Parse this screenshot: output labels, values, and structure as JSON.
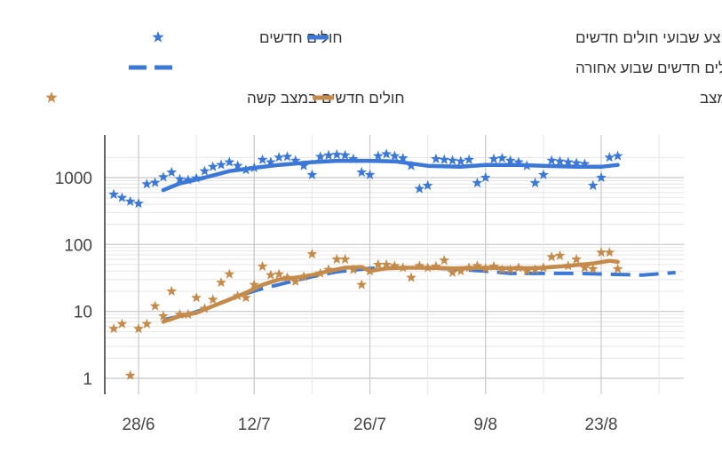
{
  "chart_data": {
    "type": "scatter",
    "title": "",
    "xlabel": "",
    "ylabel": "",
    "y_scale": "log",
    "ylim": [
      0.75,
      2500
    ],
    "xlim": [
      "2020-06-24",
      "2020-09-01"
    ],
    "x_ticks": [
      {
        "date": "2020-06-28",
        "label": "28/6"
      },
      {
        "date": "2020-07-12",
        "label": "12/7"
      },
      {
        "date": "2020-07-26",
        "label": "26/7"
      },
      {
        "date": "2020-08-09",
        "label": "9/8"
      },
      {
        "date": "2020-08-23",
        "label": "23/8"
      }
    ],
    "y_ticks": [
      {
        "value": 1,
        "label": "1"
      },
      {
        "value": 10,
        "label": "10"
      },
      {
        "value": 100,
        "label": "100"
      },
      {
        "value": 1000,
        "label": "1000"
      }
    ],
    "grid": true,
    "legend_position": "top",
    "legend": [
      {
        "label": "חולים חדשים",
        "marker": "star",
        "color": "#3c78d8"
      },
      {
        "label": "ממוצע שבועי חולים חדשים",
        "marker": "line",
        "color": "#3c78d8"
      },
      {
        "label": "שניים וחצי אחוזים מחולים חדשים שבוע אחורה",
        "marker": "dash",
        "color": "#3c78d8"
      },
      {
        "label": "חולים חדשים במצב קשה",
        "marker": "star",
        "color": "#c58b4b"
      },
      {
        "label": "ממוצע שבועי חולים חדשים במצב",
        "marker": "line",
        "color": "#c58b4b"
      }
    ],
    "series": [
      {
        "name": "חולים חדשים",
        "kind": "scatter",
        "color": "#3c78d8",
        "points": [
          [
            "2020-06-25",
            560
          ],
          [
            "2020-06-26",
            500
          ],
          [
            "2020-06-27",
            440
          ],
          [
            "2020-06-28",
            410
          ],
          [
            "2020-06-29",
            800
          ],
          [
            "2020-06-30",
            840
          ],
          [
            "2020-07-01",
            1020
          ],
          [
            "2020-07-02",
            1200
          ],
          [
            "2020-07-03",
            950
          ],
          [
            "2020-07-04",
            920
          ],
          [
            "2020-07-05",
            980
          ],
          [
            "2020-07-06",
            1250
          ],
          [
            "2020-07-07",
            1450
          ],
          [
            "2020-07-08",
            1550
          ],
          [
            "2020-07-09",
            1700
          ],
          [
            "2020-07-10",
            1500
          ],
          [
            "2020-07-11",
            1300
          ],
          [
            "2020-07-12",
            1400
          ],
          [
            "2020-07-13",
            1850
          ],
          [
            "2020-07-14",
            1700
          ],
          [
            "2020-07-15",
            2000
          ],
          [
            "2020-07-16",
            2050
          ],
          [
            "2020-07-17",
            1800
          ],
          [
            "2020-07-18",
            1500
          ],
          [
            "2020-07-19",
            1100
          ],
          [
            "2020-07-20",
            2050
          ],
          [
            "2020-07-21",
            2150
          ],
          [
            "2020-07-22",
            2200
          ],
          [
            "2020-07-23",
            2150
          ],
          [
            "2020-07-24",
            1900
          ],
          [
            "2020-07-25",
            1200
          ],
          [
            "2020-07-26",
            1100
          ],
          [
            "2020-07-27",
            2100
          ],
          [
            "2020-07-28",
            2250
          ],
          [
            "2020-07-29",
            2100
          ],
          [
            "2020-07-30",
            1950
          ],
          [
            "2020-07-31",
            1500
          ],
          [
            "2020-08-01",
            680
          ],
          [
            "2020-08-02",
            760
          ],
          [
            "2020-08-03",
            1900
          ],
          [
            "2020-08-04",
            1850
          ],
          [
            "2020-08-05",
            1800
          ],
          [
            "2020-08-06",
            1750
          ],
          [
            "2020-08-07",
            1850
          ],
          [
            "2020-08-08",
            830
          ],
          [
            "2020-08-09",
            1000
          ],
          [
            "2020-08-10",
            1900
          ],
          [
            "2020-08-11",
            1950
          ],
          [
            "2020-08-12",
            1800
          ],
          [
            "2020-08-13",
            1700
          ],
          [
            "2020-08-14",
            1500
          ],
          [
            "2020-08-15",
            830
          ],
          [
            "2020-08-16",
            1100
          ],
          [
            "2020-08-17",
            1800
          ],
          [
            "2020-08-18",
            1750
          ],
          [
            "2020-08-19",
            1700
          ],
          [
            "2020-08-20",
            1650
          ],
          [
            "2020-08-21",
            1600
          ],
          [
            "2020-08-22",
            760
          ],
          [
            "2020-08-23",
            1000
          ],
          [
            "2020-08-24",
            2000
          ],
          [
            "2020-08-25",
            2100
          ]
        ]
      },
      {
        "name": "ממוצע שבועי חולים חדשים",
        "kind": "line",
        "color": "#3c78d8",
        "points": [
          [
            "2020-07-01",
            650
          ],
          [
            "2020-07-03",
            820
          ],
          [
            "2020-07-06",
            1000
          ],
          [
            "2020-07-09",
            1250
          ],
          [
            "2020-07-12",
            1400
          ],
          [
            "2020-07-15",
            1550
          ],
          [
            "2020-07-19",
            1700
          ],
          [
            "2020-07-22",
            1780
          ],
          [
            "2020-07-26",
            1780
          ],
          [
            "2020-07-29",
            1750
          ],
          [
            "2020-08-02",
            1500
          ],
          [
            "2020-08-06",
            1450
          ],
          [
            "2020-08-09",
            1550
          ],
          [
            "2020-08-13",
            1550
          ],
          [
            "2020-08-16",
            1500
          ],
          [
            "2020-08-20",
            1450
          ],
          [
            "2020-08-23",
            1450
          ],
          [
            "2020-08-25",
            1550
          ]
        ]
      },
      {
        "name": "שניים וחצי אחוזים מחולים חדשים שבוע אחורה",
        "kind": "dashed",
        "color": "#3c78d8",
        "points": [
          [
            "2020-07-01",
            7.5
          ],
          [
            "2020-07-04",
            9
          ],
          [
            "2020-07-07",
            12
          ],
          [
            "2020-07-10",
            17
          ],
          [
            "2020-07-13",
            22
          ],
          [
            "2020-07-16",
            27
          ],
          [
            "2020-07-19",
            33
          ],
          [
            "2020-07-22",
            39
          ],
          [
            "2020-07-26",
            44
          ],
          [
            "2020-07-29",
            45
          ],
          [
            "2020-08-02",
            45
          ],
          [
            "2020-08-05",
            43
          ],
          [
            "2020-08-09",
            40
          ],
          [
            "2020-08-12",
            37
          ],
          [
            "2020-08-16",
            37
          ],
          [
            "2020-08-20",
            37
          ],
          [
            "2020-08-24",
            36
          ],
          [
            "2020-08-28",
            35
          ],
          [
            "2020-09-01",
            38
          ]
        ]
      },
      {
        "name": "חולים חדשים במצב קשה",
        "kind": "scatter",
        "color": "#c58b4b",
        "points": [
          [
            "2020-06-25",
            5.5
          ],
          [
            "2020-06-26",
            6.5
          ],
          [
            "2020-06-27",
            1.1
          ],
          [
            "2020-06-28",
            5.5
          ],
          [
            "2020-06-29",
            6.5
          ],
          [
            "2020-06-30",
            12
          ],
          [
            "2020-07-01",
            8.5
          ],
          [
            "2020-07-02",
            20
          ],
          [
            "2020-07-03",
            9
          ],
          [
            "2020-07-04",
            9
          ],
          [
            "2020-07-05",
            16
          ],
          [
            "2020-07-06",
            11
          ],
          [
            "2020-07-07",
            15
          ],
          [
            "2020-07-08",
            27
          ],
          [
            "2020-07-09",
            36
          ],
          [
            "2020-07-10",
            17
          ],
          [
            "2020-07-11",
            16
          ],
          [
            "2020-07-12",
            25
          ],
          [
            "2020-07-13",
            47
          ],
          [
            "2020-07-14",
            35
          ],
          [
            "2020-07-15",
            36
          ],
          [
            "2020-07-16",
            32
          ],
          [
            "2020-07-17",
            28
          ],
          [
            "2020-07-18",
            33
          ],
          [
            "2020-07-19",
            72
          ],
          [
            "2020-07-20",
            37
          ],
          [
            "2020-07-21",
            42
          ],
          [
            "2020-07-22",
            60
          ],
          [
            "2020-07-23",
            60
          ],
          [
            "2020-07-24",
            42
          ],
          [
            "2020-07-25",
            25
          ],
          [
            "2020-07-26",
            40
          ],
          [
            "2020-07-27",
            50
          ],
          [
            "2020-07-28",
            50
          ],
          [
            "2020-07-29",
            48
          ],
          [
            "2020-07-30",
            45
          ],
          [
            "2020-07-31",
            32
          ],
          [
            "2020-08-01",
            48
          ],
          [
            "2020-08-02",
            45
          ],
          [
            "2020-08-03",
            47
          ],
          [
            "2020-08-04",
            58
          ],
          [
            "2020-08-05",
            38
          ],
          [
            "2020-08-06",
            40
          ],
          [
            "2020-08-07",
            45
          ],
          [
            "2020-08-08",
            48
          ],
          [
            "2020-08-09",
            44
          ],
          [
            "2020-08-10",
            47
          ],
          [
            "2020-08-11",
            42
          ],
          [
            "2020-08-12",
            42
          ],
          [
            "2020-08-13",
            45
          ],
          [
            "2020-08-14",
            40
          ],
          [
            "2020-08-15",
            42
          ],
          [
            "2020-08-16",
            45
          ],
          [
            "2020-08-17",
            65
          ],
          [
            "2020-08-18",
            68
          ],
          [
            "2020-08-19",
            48
          ],
          [
            "2020-08-20",
            60
          ],
          [
            "2020-08-21",
            45
          ],
          [
            "2020-08-22",
            43
          ],
          [
            "2020-08-23",
            76
          ],
          [
            "2020-08-24",
            76
          ],
          [
            "2020-08-25",
            43
          ]
        ]
      },
      {
        "name": "ממוצע שבועי חולים חדשים במצב",
        "kind": "line",
        "color": "#c58b4b",
        "points": [
          [
            "2020-07-01",
            7
          ],
          [
            "2020-07-03",
            8.5
          ],
          [
            "2020-07-05",
            9.5
          ],
          [
            "2020-07-07",
            12
          ],
          [
            "2020-07-09",
            15
          ],
          [
            "2020-07-11",
            19
          ],
          [
            "2020-07-13",
            25
          ],
          [
            "2020-07-15",
            30
          ],
          [
            "2020-07-17",
            32
          ],
          [
            "2020-07-19",
            35
          ],
          [
            "2020-07-21",
            40
          ],
          [
            "2020-07-23",
            45
          ],
          [
            "2020-07-25",
            46
          ],
          [
            "2020-07-26",
            40
          ],
          [
            "2020-07-28",
            44
          ],
          [
            "2020-07-30",
            45
          ],
          [
            "2020-08-02",
            45
          ],
          [
            "2020-08-05",
            44
          ],
          [
            "2020-08-09",
            45
          ],
          [
            "2020-08-13",
            44
          ],
          [
            "2020-08-16",
            45
          ],
          [
            "2020-08-19",
            48
          ],
          [
            "2020-08-22",
            52
          ],
          [
            "2020-08-24",
            57
          ],
          [
            "2020-08-25",
            55
          ]
        ]
      }
    ]
  }
}
